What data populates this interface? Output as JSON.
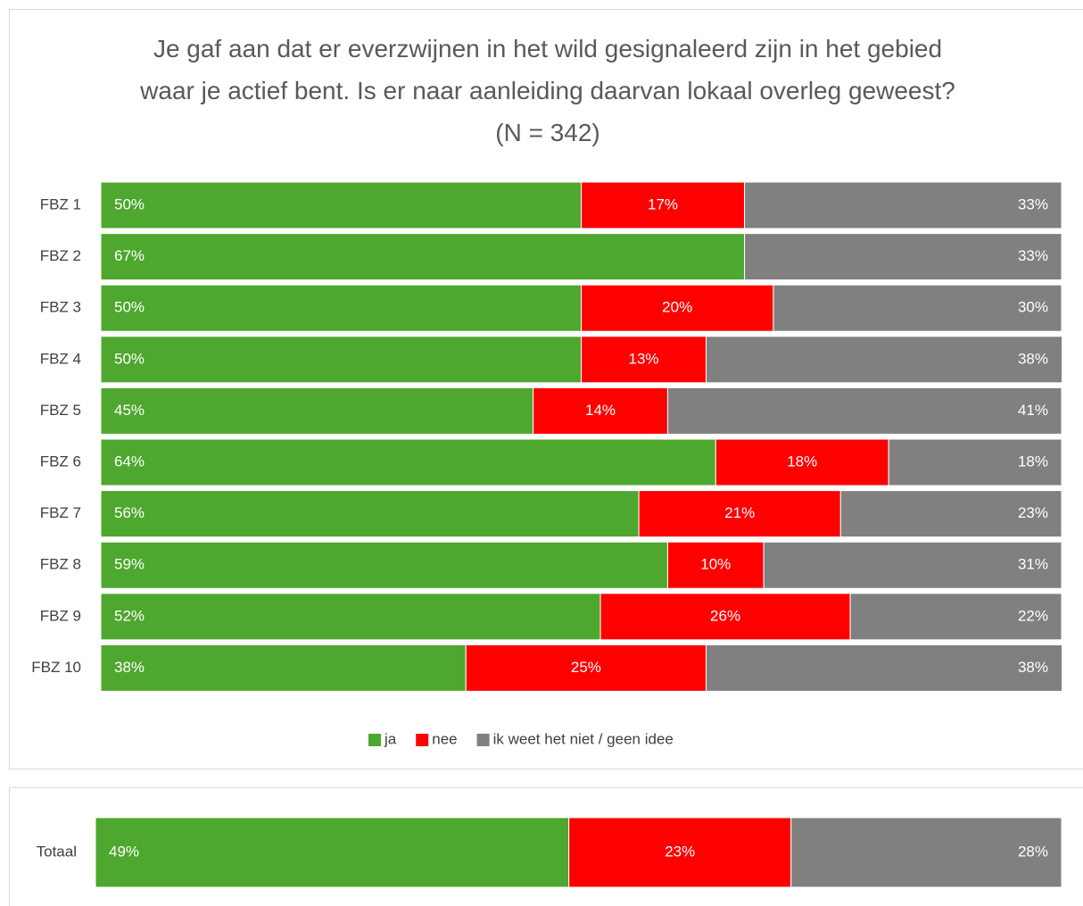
{
  "chart_data": [
    {
      "type": "bar",
      "orientation": "horizontal",
      "stacked": true,
      "title": "Je gaf aan dat er everzwijnen in het wild gesignaleerd zijn in het gebied waar je actief bent. Is er naar aanleiding daarvan lokaal overleg geweest? (N = 342)",
      "categories": [
        "FBZ 1",
        "FBZ 2",
        "FBZ 3",
        "FBZ 4",
        "FBZ 5",
        "FBZ 6",
        "FBZ 7",
        "FBZ 8",
        "FBZ 9",
        "FBZ 10"
      ],
      "series": [
        {
          "name": "ja",
          "color": "#4ea72e",
          "values": [
            50,
            67,
            50,
            50,
            45,
            64,
            56,
            59,
            52,
            38
          ],
          "value_labels": [
            "50%",
            "67%",
            "50%",
            "50%",
            "45%",
            "64%",
            "56%",
            "59%",
            "52%",
            "38%"
          ]
        },
        {
          "name": "nee",
          "color": "#ff0000",
          "values": [
            17,
            0,
            20,
            13,
            14,
            18,
            21,
            10,
            26,
            25
          ],
          "value_labels": [
            "17%",
            null,
            "20%",
            "13%",
            "14%",
            "18%",
            "21%",
            "10%",
            "26%",
            "25%"
          ]
        },
        {
          "name": "ik weet het niet / geen idee",
          "color": "#808080",
          "values": [
            33,
            33,
            30,
            38,
            41,
            18,
            23,
            31,
            22,
            38
          ],
          "value_labels": [
            "33%",
            "33%",
            "30%",
            "38%",
            "41%",
            "18%",
            "23%",
            "31%",
            "22%",
            "38%"
          ]
        }
      ],
      "xlim": [
        0,
        100
      ],
      "legend": "bottom"
    },
    {
      "type": "bar",
      "orientation": "horizontal",
      "stacked": true,
      "categories": [
        "Totaal"
      ],
      "series": [
        {
          "color": "#4ea72e",
          "values": [
            49
          ],
          "value_labels": [
            "49%"
          ]
        },
        {
          "color": "#ff0000",
          "values": [
            23
          ],
          "value_labels": [
            "23%"
          ]
        },
        {
          "color": "#808080",
          "values": [
            28
          ],
          "value_labels": [
            "28%"
          ]
        }
      ],
      "xlim": [
        0,
        100
      ]
    }
  ]
}
